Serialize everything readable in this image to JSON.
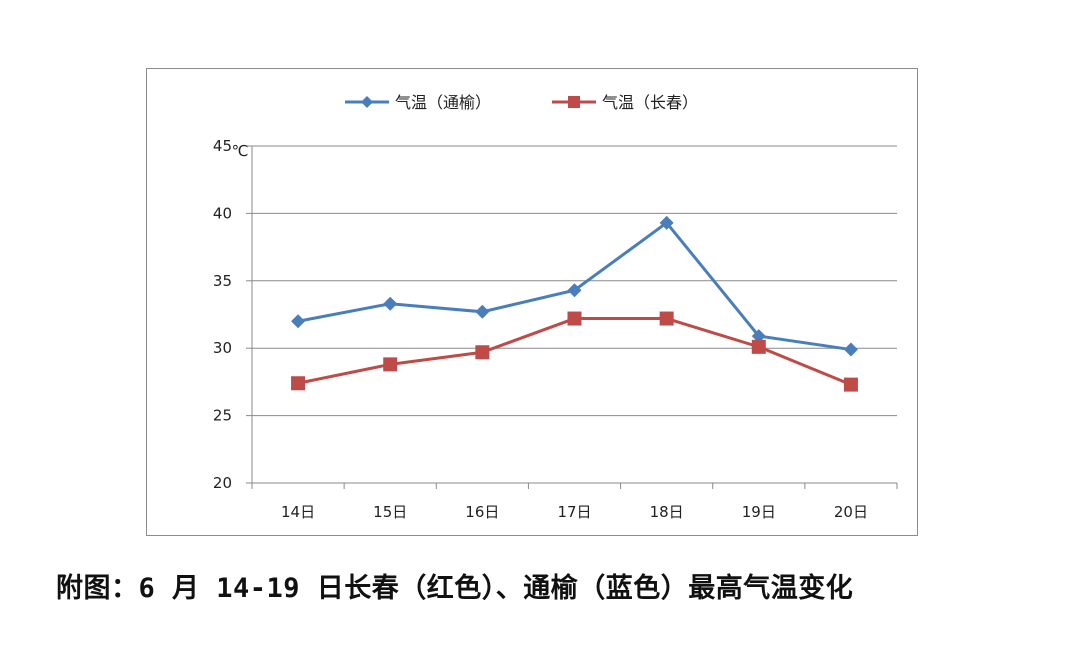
{
  "chart_data": {
    "type": "line",
    "categories": [
      "14日",
      "15日",
      "16日",
      "17日",
      "18日",
      "19日",
      "20日"
    ],
    "series": [
      {
        "name": "气温（通榆）",
        "color": "#4a7ebb",
        "marker": "diamond",
        "values": [
          32.0,
          33.3,
          32.7,
          34.3,
          39.3,
          30.9,
          29.9
        ]
      },
      {
        "name": "气温（长春）",
        "color": "#be4b48",
        "marker": "square",
        "values": [
          27.4,
          28.8,
          29.7,
          32.2,
          32.2,
          30.1,
          27.3
        ]
      }
    ],
    "ylabel": "℃",
    "ylim": [
      20,
      45
    ],
    "yticks": [
      "20",
      "25",
      "30",
      "35",
      "40",
      "45"
    ],
    "grid": true,
    "legend_position": "top"
  },
  "caption": "附图：6 月 14-19 日长春（红色）、通榆（蓝色）最高气温变化"
}
